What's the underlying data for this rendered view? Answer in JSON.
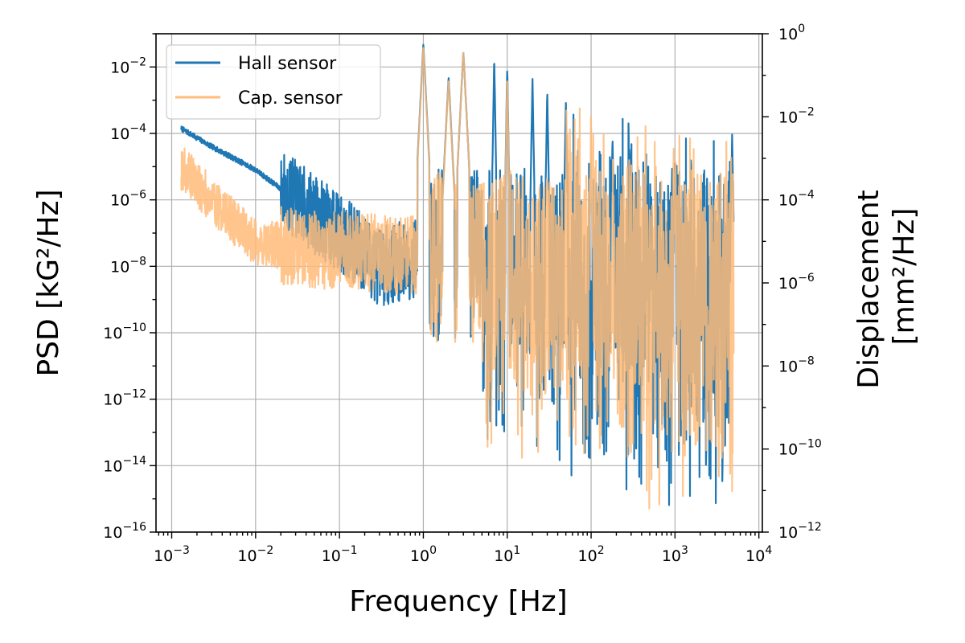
{
  "chart_data": {
    "type": "line",
    "title": "",
    "xlabel": "Frequency [Hz]",
    "ylabel": "PSD [kG²/Hz]",
    "y2label": [
      "Displacement",
      "[mm²/Hz]"
    ],
    "xscale": "log",
    "yscale": "log",
    "xlim": [
      0.00065,
      11000
    ],
    "ylim": [
      1e-16,
      0.1
    ],
    "y2lim": [
      1e-12,
      1
    ],
    "grid": true,
    "legend_position": "top-left",
    "x_ticks": [
      {
        "base": "10",
        "exp": "−3",
        "value": 0.001
      },
      {
        "base": "10",
        "exp": "−2",
        "value": 0.01
      },
      {
        "base": "10",
        "exp": "−1",
        "value": 0.1
      },
      {
        "base": "10",
        "exp": "0",
        "value": 1
      },
      {
        "base": "10",
        "exp": "1",
        "value": 10
      },
      {
        "base": "10",
        "exp": "2",
        "value": 100
      },
      {
        "base": "10",
        "exp": "3",
        "value": 1000
      },
      {
        "base": "10",
        "exp": "4",
        "value": 10000
      }
    ],
    "y_ticks": [
      {
        "base": "10",
        "exp": "−2",
        "value": 0.01
      },
      {
        "base": "10",
        "exp": "−4",
        "value": 0.0001
      },
      {
        "base": "10",
        "exp": "−6",
        "value": 1e-06
      },
      {
        "base": "10",
        "exp": "−8",
        "value": 1e-08
      },
      {
        "base": "10",
        "exp": "−10",
        "value": 1e-10
      },
      {
        "base": "10",
        "exp": "−12",
        "value": 1e-12
      },
      {
        "base": "10",
        "exp": "−14",
        "value": 1e-14
      },
      {
        "base": "10",
        "exp": "−16",
        "value": 1e-16
      }
    ],
    "y2_ticks": [
      {
        "base": "10",
        "exp": "0",
        "value": 1
      },
      {
        "base": "10",
        "exp": "−2",
        "value": 0.01
      },
      {
        "base": "10",
        "exp": "−4",
        "value": 0.0001
      },
      {
        "base": "10",
        "exp": "−6",
        "value": 1e-06
      },
      {
        "base": "10",
        "exp": "−8",
        "value": 1e-08
      },
      {
        "base": "10",
        "exp": "−10",
        "value": 1e-10
      },
      {
        "base": "10",
        "exp": "−12",
        "value": 1e-12
      }
    ],
    "series": [
      {
        "name": "Hall sensor",
        "color": "#1f77b4",
        "opacity": 1.0,
        "f_min": 0.0013,
        "f_max": 5000,
        "approx_baseline": [
          [
            0.0013,
            0.00014
          ],
          [
            0.003,
            4e-05
          ],
          [
            0.01,
            8e-06
          ],
          [
            0.03,
            1e-06
          ],
          [
            0.1,
            1e-07
          ],
          [
            0.3,
            1e-08
          ],
          [
            1,
            2e-08
          ],
          [
            10,
            3e-08
          ],
          [
            100,
            1e-08
          ],
          [
            1000,
            5e-09
          ],
          [
            5000,
            3e-09
          ]
        ],
        "peaks": [
          [
            1.0,
            0.05
          ],
          [
            2.0,
            0.005
          ],
          [
            3.0,
            0.03
          ],
          [
            7.0,
            0.02
          ],
          [
            10.0,
            0.01
          ],
          [
            20.0,
            0.005
          ],
          [
            30.0,
            0.002
          ],
          [
            50.0,
            0.001
          ],
          [
            180.0,
            8e-05
          ],
          [
            1000.0,
            2e-05
          ],
          [
            4800.0,
            0.0001
          ]
        ]
      },
      {
        "name": "Cap. sensor",
        "color": "#ffbb78",
        "opacity": 0.85,
        "f_min": 0.0013,
        "f_max": 5000,
        "approx_baseline": [
          [
            0.0013,
            1e-05
          ],
          [
            0.003,
            1e-06
          ],
          [
            0.01,
            5e-08
          ],
          [
            0.1,
            3e-08
          ],
          [
            1,
            2e-08
          ],
          [
            10,
            2e-08
          ],
          [
            100,
            1e-08
          ],
          [
            1000,
            5e-09
          ],
          [
            5000,
            3e-09
          ]
        ],
        "peaks": [
          [
            1.0,
            0.04
          ],
          [
            2.0,
            0.004
          ],
          [
            3.0,
            0.03
          ],
          [
            10.0,
            0.005
          ],
          [
            100.0,
            0.0001
          ],
          [
            1000.0,
            1e-05
          ]
        ]
      }
    ]
  }
}
